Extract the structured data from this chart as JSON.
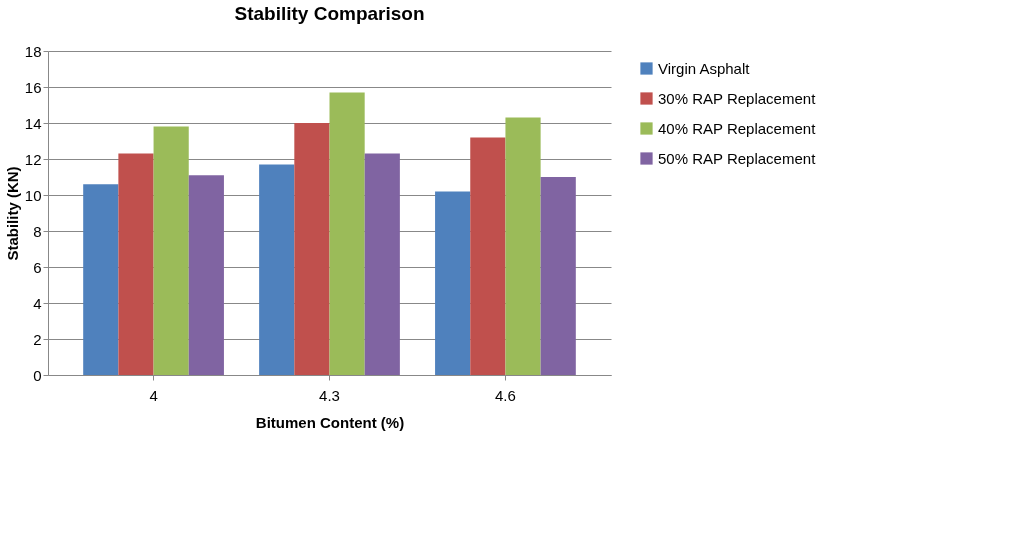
{
  "chart_data": {
    "type": "bar",
    "title": "Stability Comparison",
    "xlabel": "Bitumen Content (%)",
    "ylabel": "Stability (KN)",
    "categories": [
      "4",
      "4.3",
      "4.6"
    ],
    "series": [
      {
        "name": "Virgin Asphalt",
        "color": "#4f81bd",
        "values": [
          10.6,
          11.7,
          10.2
        ]
      },
      {
        "name": "30% RAP Replacement",
        "color": "#c0504d",
        "values": [
          12.3,
          14.0,
          13.2
        ]
      },
      {
        "name": "40% RAP Replacement",
        "color": "#9bbb59",
        "values": [
          13.8,
          15.7,
          14.3
        ]
      },
      {
        "name": "50% RAP Replacement",
        "color": "#8064a2",
        "values": [
          11.1,
          12.3,
          11.0
        ]
      }
    ],
    "ylim": [
      0,
      18
    ],
    "yticks": [
      0,
      2,
      4,
      6,
      8,
      10,
      12,
      14,
      16,
      18
    ],
    "grid": "y",
    "legend": "right"
  }
}
